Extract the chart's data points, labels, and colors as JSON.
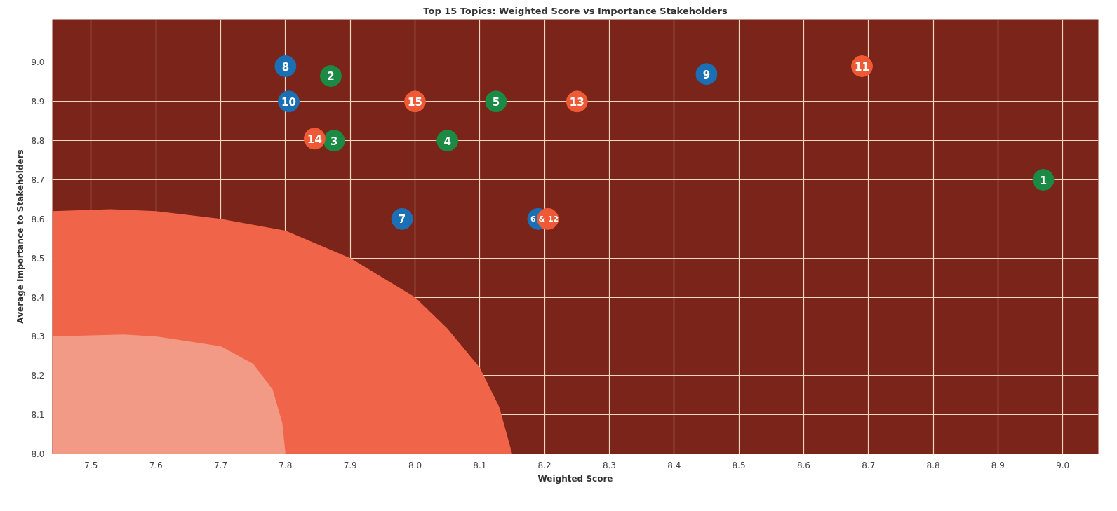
{
  "chart_data": {
    "type": "scatter",
    "title": "Top 15 Topics: Weighted Score vs Importance Stakeholders",
    "xlabel": "Weighted Score",
    "ylabel": "Average Importance to Stakeholders",
    "xlim": [
      7.44,
      9.055
    ],
    "ylim": [
      8.0,
      9.11
    ],
    "xticks": [
      7.5,
      7.6,
      7.7,
      7.8,
      7.9,
      {
        "value": 8,
        "label": "8.0"
      },
      8.1,
      8.2,
      8.3,
      8.4,
      8.5,
      8.6,
      8.7,
      8.8,
      8.9,
      {
        "value": 9,
        "label": "9.0"
      }
    ],
    "yticks": [
      {
        "value": 8,
        "label": "8.0"
      },
      8.1,
      8.2,
      8.3,
      8.4,
      8.5,
      8.6,
      8.7,
      8.8,
      8.9,
      {
        "value": 9,
        "label": "9.0"
      }
    ],
    "grid": true,
    "series": [
      {
        "type": "area",
        "color": "#f0654a",
        "x": [
          7.44,
          7.53,
          7.6,
          7.7,
          7.8,
          7.9,
          8.0,
          8.05,
          8.1,
          8.13,
          8.15
        ],
        "values": [
          8.62,
          8.625,
          8.62,
          8.6,
          8.57,
          8.5,
          8.4,
          8.32,
          8.22,
          8.12,
          8.0
        ]
      },
      {
        "type": "area",
        "color": "#f29a85",
        "x": [
          7.44,
          7.55,
          7.6,
          7.7,
          7.75,
          7.78,
          7.795,
          7.8
        ],
        "values": [
          8.3,
          8.305,
          8.3,
          8.275,
          8.23,
          8.165,
          8.08,
          8.0
        ]
      },
      {
        "color": "#1a6fb5",
        "marker": "circle",
        "x": [
          7.8,
          7.805,
          7.98,
          8.45,
          8.19
        ],
        "values": [
          8.99,
          8.9,
          8.6,
          8.97,
          8.6
        ]
      },
      {
        "color": "#1a8a45",
        "marker": "circle",
        "x": [
          7.87,
          7.875,
          8.05,
          8.125,
          8.97
        ],
        "values": [
          8.965,
          8.8,
          8.8,
          8.9,
          8.7
        ]
      },
      {
        "color": "#ee5a36",
        "marker": "circle",
        "x": [
          7.845,
          8.0,
          8.25,
          8.69,
          8.205
        ],
        "values": [
          8.805,
          8.9,
          8.9,
          8.99,
          8.6
        ]
      }
    ],
    "annotations": [
      {
        "text": "8",
        "x": 7.8,
        "y": 8.99
      },
      {
        "text": "10",
        "x": 7.805,
        "y": 8.9
      },
      {
        "text": "7",
        "x": 7.98,
        "y": 8.6
      },
      {
        "text": "9",
        "x": 8.45,
        "y": 8.97
      },
      {
        "text": "2",
        "x": 7.87,
        "y": 8.965
      },
      {
        "text": "3",
        "x": 7.875,
        "y": 8.8
      },
      {
        "text": "4",
        "x": 8.05,
        "y": 8.8
      },
      {
        "text": "5",
        "x": 8.125,
        "y": 8.9
      },
      {
        "text": "1",
        "x": 8.97,
        "y": 8.7
      },
      {
        "text": "14",
        "x": 7.845,
        "y": 8.805
      },
      {
        "text": "15",
        "x": 8.0,
        "y": 8.9
      },
      {
        "text": "13",
        "x": 8.25,
        "y": 8.9
      },
      {
        "text": "11",
        "x": 8.69,
        "y": 8.99
      },
      {
        "text": "6 & 12",
        "x": 8.2,
        "y": 8.6
      }
    ]
  }
}
